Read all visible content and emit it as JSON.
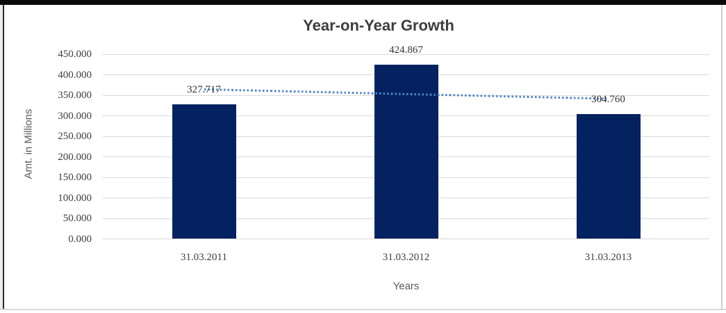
{
  "chart_data": {
    "type": "bar",
    "title": "Year-on-Year Growth",
    "xlabel": "Years",
    "ylabel": "Amt. in Millions",
    "categories": [
      "31.03.2011",
      "31.03.2012",
      "31.03.2013"
    ],
    "values": [
      327717,
      424867,
      304760
    ],
    "value_labels": [
      "327.717",
      "424.867",
      "304.760"
    ],
    "ylim": [
      0,
      450000
    ],
    "y_ticks": [
      {
        "value": 450000,
        "label": "450.000"
      },
      {
        "value": 400000,
        "label": "400.000"
      },
      {
        "value": 350000,
        "label": "350.000"
      },
      {
        "value": 300000,
        "label": "300.000"
      },
      {
        "value": 250000,
        "label": "250.000"
      },
      {
        "value": 200000,
        "label": "200.000"
      },
      {
        "value": 150000,
        "label": "150.000"
      },
      {
        "value": 100000,
        "label": "100.000"
      },
      {
        "value": 50000,
        "label": "50.000"
      },
      {
        "value": 0,
        "label": "0.000"
      }
    ],
    "grid": true,
    "legend": "none",
    "bar_color": "#042260",
    "trendline": {
      "type": "linear",
      "style": "dotted",
      "color": "#4e87c9"
    }
  }
}
